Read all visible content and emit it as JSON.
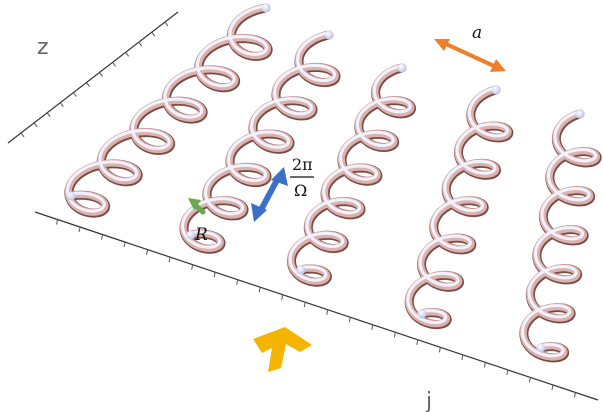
{
  "figure": {
    "axis_z": "z",
    "axis_j": "j",
    "label_lattice_spacing": "a",
    "label_radius": "R",
    "label_pitch_numerator": "2π",
    "label_pitch_denominator": "Ω"
  },
  "helices": {
    "count": 5,
    "turns_per_helix": [
      6,
      6,
      6,
      6,
      6
    ],
    "note": ""
  },
  "colors": {
    "helix_light": "#eef1ff",
    "helix_mid": "#d9aaa8",
    "helix_dark": "#6b3a34",
    "lattice_arrow": "#ef7f2a",
    "pitch_arrow": "#3b6fc8",
    "radius_arrow": "#6aa84f",
    "incident_arrow": "#f5b400",
    "axis": "#333333"
  }
}
